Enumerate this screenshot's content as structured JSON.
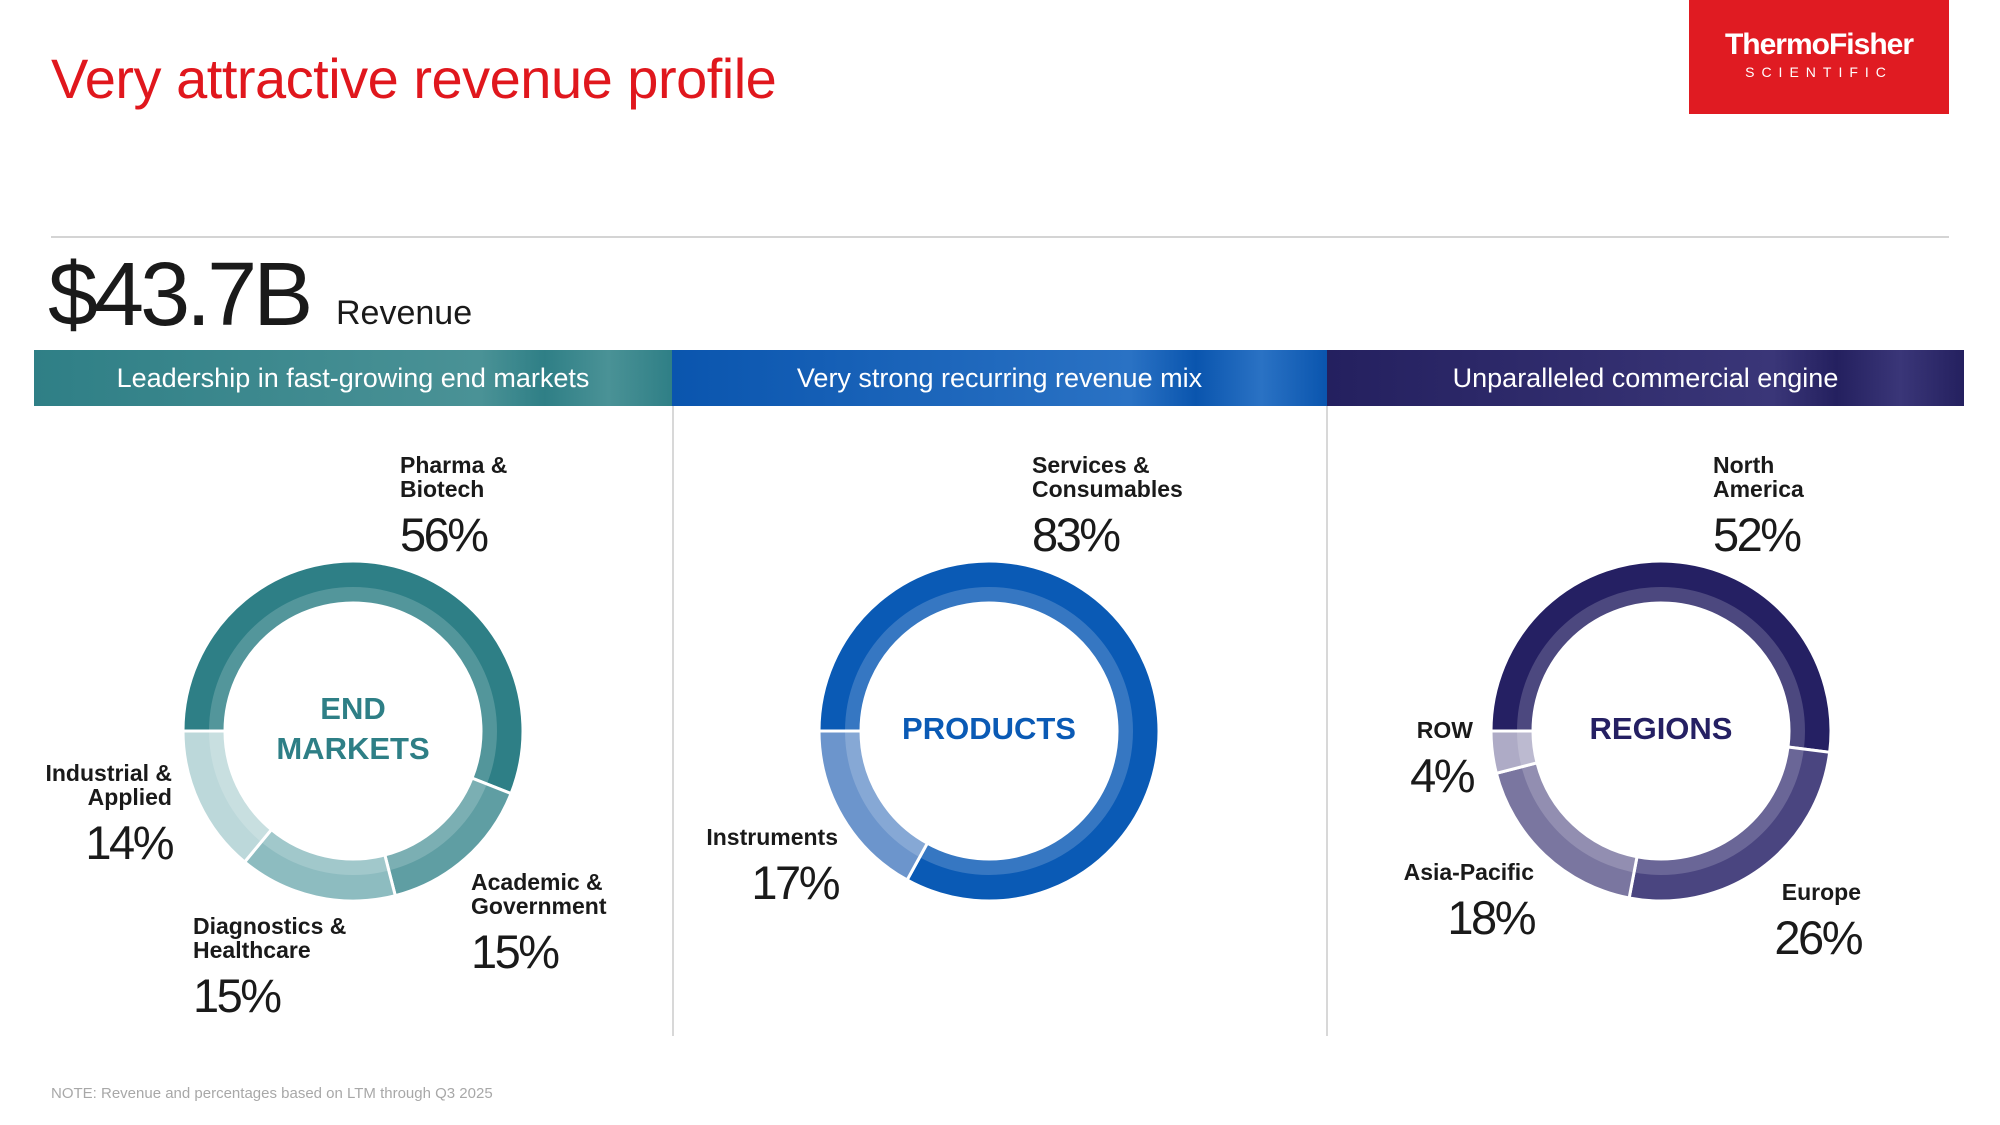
{
  "title": "Very attractive revenue profile",
  "logo": {
    "name": "ThermoFisher",
    "sub": "SCIENTIFIC"
  },
  "revenue": {
    "amount": "$43.7B",
    "label": "Revenue"
  },
  "note": "NOTE: Revenue and percentages based on LTM through Q3 2025",
  "chart_data": [
    {
      "type": "donut",
      "title": "Leadership in fast-growing end markets",
      "center_label": [
        "END",
        "MARKETS"
      ],
      "color": "#2e7f86",
      "categories": [
        "Pharma & Biotech",
        "Academic & Government",
        "Diagnostics & Healthcare",
        "Industrial & Applied"
      ],
      "values": [
        56,
        15,
        15,
        14
      ],
      "value_labels": [
        "56%",
        "15%",
        "15%",
        "14%"
      ],
      "colors": [
        "#2e7f86",
        "#5f9ea3",
        "#8dbcc0",
        "#bcd8da"
      ]
    },
    {
      "type": "donut",
      "title": "Very strong recurring revenue mix",
      "center_label": [
        "PRODUCTS"
      ],
      "color": "#0a5ab5",
      "categories": [
        "Services & Consumables",
        "Instruments"
      ],
      "values": [
        83,
        17
      ],
      "value_labels": [
        "83%",
        "17%"
      ],
      "colors": [
        "#0a5ab5",
        "#6c95cc"
      ]
    },
    {
      "type": "donut",
      "title": "Unparalleled commercial engine",
      "center_label": [
        "REGIONS"
      ],
      "color": "#252063",
      "categories": [
        "North America",
        "Europe",
        "Asia-Pacific",
        "ROW"
      ],
      "values": [
        52,
        26,
        18,
        4
      ],
      "value_labels": [
        "52%",
        "26%",
        "18%",
        "4%"
      ],
      "colors": [
        "#252063",
        "#4a4580",
        "#7a76a0",
        "#aeabc6"
      ]
    }
  ]
}
